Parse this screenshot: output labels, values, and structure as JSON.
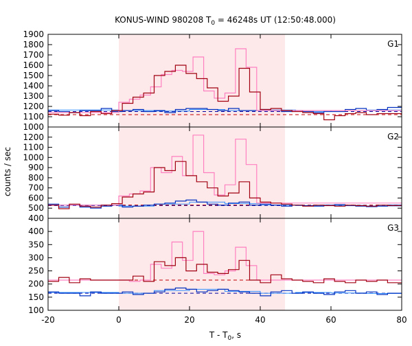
{
  "chart_data": {
    "type": "line",
    "title_main": "KONUS-WIND 980208 T",
    "title_sub": "0",
    "title_rest": " = 46248s UT (12:50:48.000)",
    "xlabel_main": "T - T",
    "xlabel_sub": "0",
    "xlabel_rest": ", s",
    "ylabel": "counts / sec",
    "xlim": [
      -20,
      80
    ],
    "x_ticks": [
      "-20",
      "0",
      "20",
      "40",
      "60",
      "80"
    ],
    "x_tick_values": [
      -20,
      0,
      20,
      40,
      60,
      80
    ],
    "shaded_interval": [
      0,
      47
    ],
    "colors": {
      "shade": "#fde8ea",
      "high_rate": "#a00010",
      "high_rate_detail": "#ff80c0",
      "low_rate": "#0030c0",
      "low_rate_detail": "#3090ff",
      "background_high": "#c00000",
      "background_low": "#0000a0"
    },
    "panels": [
      {
        "label": "G1",
        "ylim": [
          1000,
          1900
        ],
        "y_ticks": [
          "1000",
          "1100",
          "1200",
          "1300",
          "1400",
          "1500",
          "1600",
          "1700",
          "1800",
          "1900"
        ],
        "y_tick_values": [
          1000,
          1100,
          1200,
          1300,
          1400,
          1500,
          1600,
          1700,
          1800,
          1900
        ],
        "background_high": 1120,
        "background_low": 1150,
        "high_edges": [
          -20,
          -17,
          -14,
          -11,
          -8,
          -5,
          -2,
          1,
          4,
          7,
          10,
          13,
          16,
          19,
          22,
          25,
          28,
          31,
          34,
          37,
          40,
          43,
          46,
          49,
          52,
          55,
          58,
          61,
          64,
          67,
          70,
          73,
          76,
          80
        ],
        "high_values": [
          1125,
          1115,
          1140,
          1110,
          1150,
          1130,
          1160,
          1230,
          1290,
          1330,
          1500,
          1540,
          1600,
          1520,
          1470,
          1380,
          1250,
          1300,
          1570,
          1340,
          1170,
          1180,
          1160,
          1150,
          1140,
          1130,
          1070,
          1110,
          1130,
          1140,
          1120,
          1130,
          1130
        ],
        "high_detail_edges": [
          -20,
          0,
          3,
          6,
          9,
          12,
          15,
          18,
          21,
          24,
          27,
          30,
          33,
          36,
          39,
          80
        ],
        "high_detail_values": [
          1140,
          1240,
          1270,
          1310,
          1390,
          1510,
          1550,
          1540,
          1680,
          1350,
          1280,
          1330,
          1760,
          1580,
          1160,
          1140
        ],
        "low_edges": [
          -20,
          -17,
          -14,
          -11,
          -8,
          -5,
          -2,
          1,
          4,
          7,
          10,
          13,
          16,
          19,
          22,
          25,
          28,
          31,
          34,
          37,
          40,
          43,
          46,
          49,
          52,
          55,
          58,
          61,
          64,
          67,
          70,
          73,
          76,
          80
        ],
        "low_values": [
          1160,
          1150,
          1140,
          1160,
          1160,
          1180,
          1150,
          1160,
          1170,
          1150,
          1160,
          1140,
          1170,
          1180,
          1180,
          1170,
          1160,
          1180,
          1160,
          1160,
          1170,
          1160,
          1150,
          1160,
          1150,
          1140,
          1150,
          1150,
          1170,
          1180,
          1160,
          1170,
          1190
        ],
        "low_detail_edges": [
          -20,
          0,
          10,
          20,
          30,
          40,
          50,
          60,
          70,
          80
        ],
        "low_detail_values": [
          1165,
          1160,
          1155,
          1170,
          1160,
          1165,
          1150,
          1160,
          1165
        ]
      },
      {
        "label": "G2",
        "ylim": [
          400,
          1300
        ],
        "y_ticks": [
          "400",
          "500",
          "600",
          "700",
          "800",
          "900",
          "1000",
          "1100",
          "1200"
        ],
        "y_tick_values": [
          400,
          500,
          600,
          700,
          800,
          900,
          1000,
          1100,
          1200
        ],
        "background_high": 530,
        "background_low": 525,
        "high_edges": [
          -20,
          -17,
          -14,
          -11,
          -8,
          -5,
          -2,
          1,
          4,
          7,
          10,
          13,
          16,
          19,
          22,
          25,
          28,
          31,
          34,
          37,
          40,
          43,
          46,
          49,
          52,
          55,
          58,
          61,
          64,
          67,
          70,
          73,
          76,
          80
        ],
        "high_values": [
          530,
          495,
          540,
          520,
          510,
          530,
          545,
          610,
          640,
          660,
          900,
          870,
          960,
          820,
          760,
          700,
          620,
          650,
          760,
          600,
          560,
          550,
          540,
          530,
          520,
          530,
          525,
          520,
          530,
          525,
          520,
          530,
          525
        ],
        "high_detail_edges": [
          -20,
          0,
          3,
          6,
          9,
          12,
          15,
          18,
          21,
          24,
          27,
          30,
          33,
          36,
          39,
          80
        ],
        "high_detail_values": [
          530,
          620,
          640,
          670,
          900,
          850,
          1010,
          820,
          1220,
          850,
          630,
          730,
          1180,
          930,
          550,
          530
        ],
        "low_edges": [
          -20,
          -17,
          -14,
          -11,
          -8,
          -5,
          -2,
          1,
          4,
          7,
          10,
          13,
          16,
          19,
          22,
          25,
          28,
          31,
          34,
          37,
          40,
          43,
          46,
          49,
          52,
          55,
          58,
          61,
          64,
          67,
          70,
          73,
          76,
          80
        ],
        "low_values": [
          540,
          510,
          530,
          510,
          500,
          520,
          530,
          510,
          520,
          530,
          540,
          550,
          570,
          580,
          560,
          540,
          530,
          550,
          560,
          530,
          540,
          530,
          520,
          530,
          525,
          520,
          530,
          535,
          525,
          520,
          515,
          520,
          530
        ],
        "low_detail_edges": [
          -20,
          0,
          10,
          20,
          30,
          40,
          50,
          60,
          70,
          80
        ],
        "low_detail_values": [
          530,
          520,
          540,
          560,
          545,
          530,
          525,
          528,
          522
        ]
      },
      {
        "label": "G3",
        "ylim": [
          100,
          450
        ],
        "y_ticks": [
          "100",
          "150",
          "200",
          "250",
          "300",
          "350",
          "400"
        ],
        "y_tick_values": [
          100,
          150,
          200,
          250,
          300,
          350,
          400
        ],
        "background_high": 215,
        "background_low": 165,
        "high_edges": [
          -20,
          -17,
          -14,
          -11,
          -8,
          -5,
          -2,
          1,
          4,
          7,
          10,
          13,
          16,
          19,
          22,
          25,
          28,
          31,
          34,
          37,
          40,
          43,
          46,
          49,
          52,
          55,
          58,
          61,
          64,
          67,
          70,
          73,
          76,
          80
        ],
        "high_values": [
          210,
          225,
          205,
          220,
          215,
          215,
          215,
          215,
          230,
          210,
          285,
          270,
          300,
          250,
          275,
          245,
          240,
          255,
          290,
          215,
          205,
          235,
          220,
          215,
          210,
          205,
          220,
          210,
          205,
          215,
          210,
          215,
          205
        ],
        "high_detail_edges": [
          -20,
          0,
          3,
          6,
          9,
          12,
          15,
          18,
          21,
          24,
          27,
          30,
          33,
          36,
          39,
          80
        ],
        "high_detail_values": [
          215,
          215,
          210,
          215,
          275,
          260,
          360,
          290,
          400,
          240,
          235,
          250,
          340,
          270,
          215,
          215
        ],
        "low_edges": [
          -20,
          -17,
          -14,
          -11,
          -8,
          -5,
          -2,
          1,
          4,
          7,
          10,
          13,
          16,
          19,
          22,
          25,
          28,
          31,
          34,
          37,
          40,
          43,
          46,
          49,
          52,
          55,
          58,
          61,
          64,
          67,
          70,
          73,
          76,
          80
        ],
        "low_values": [
          170,
          165,
          165,
          155,
          170,
          165,
          165,
          170,
          160,
          165,
          170,
          180,
          185,
          180,
          170,
          175,
          180,
          175,
          170,
          165,
          155,
          170,
          175,
          165,
          170,
          165,
          160,
          170,
          175,
          165,
          170,
          160,
          165
        ],
        "low_detail_edges": [
          -20,
          0,
          10,
          20,
          30,
          40,
          50,
          60,
          70,
          80
        ],
        "low_detail_values": [
          168,
          165,
          175,
          180,
          172,
          165,
          168,
          166,
          164
        ]
      }
    ]
  }
}
